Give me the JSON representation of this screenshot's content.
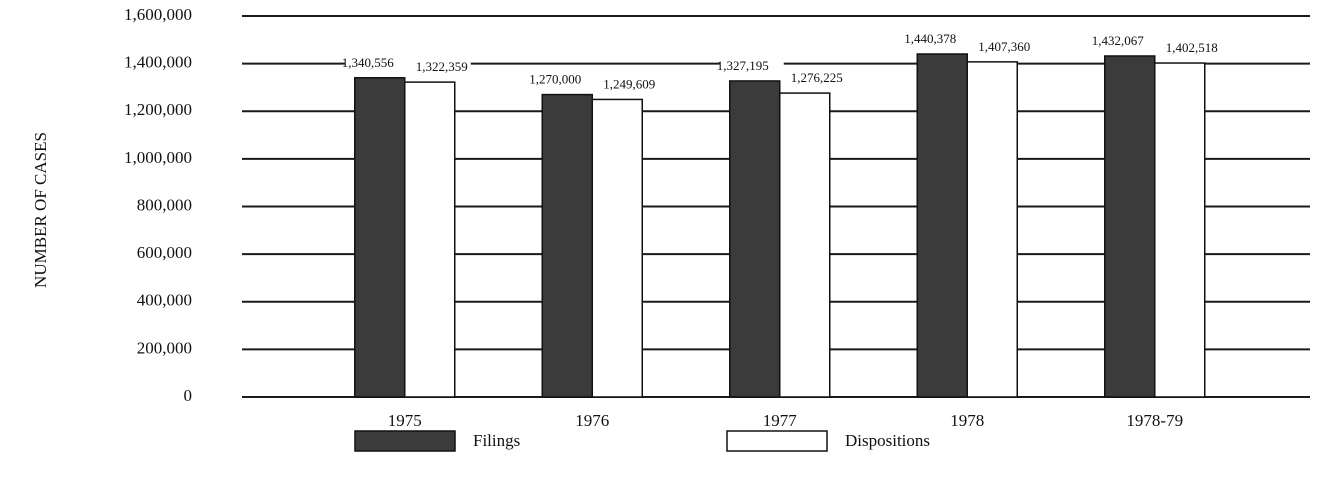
{
  "chart_data": {
    "type": "bar",
    "y_axis_label": "NUMBER OF CASES",
    "categories": [
      "1975",
      "1976",
      "1977",
      "1978",
      "1978-79"
    ],
    "series": [
      {
        "name": "Filings",
        "color": "#3b3b3b",
        "values": [
          1340556,
          1270000,
          1327195,
          1440378,
          1432067
        ],
        "value_labels": [
          "1,340,556",
          "1,270,000",
          "1,327,195",
          "1,440,378",
          "1,432,067"
        ]
      },
      {
        "name": "Dispositions",
        "color": "#ffffff",
        "values": [
          1322359,
          1249609,
          1276225,
          1407360,
          1402518
        ],
        "value_labels": [
          "1,322,359",
          "1,249,609",
          "1,276,225",
          "1,407,360",
          "1,402,518"
        ]
      }
    ],
    "ylim": [
      0,
      1600000
    ],
    "yticks": [
      0,
      {
        "value": 200000,
        "label": "200,000"
      },
      {
        "value": 400000,
        "label": "400,000"
      },
      {
        "value": 600000,
        "label": "600,000"
      },
      {
        "value": 800000,
        "label": "800,000"
      },
      {
        "value": 1000000,
        "label": "1,000,000"
      },
      {
        "value": 1200000,
        "label": "1,200,000"
      },
      {
        "value": 1400000,
        "label": "1,400,000"
      },
      {
        "value": 1600000,
        "label": "1,600,000"
      }
    ],
    "grid": true,
    "legend": "bottom"
  }
}
